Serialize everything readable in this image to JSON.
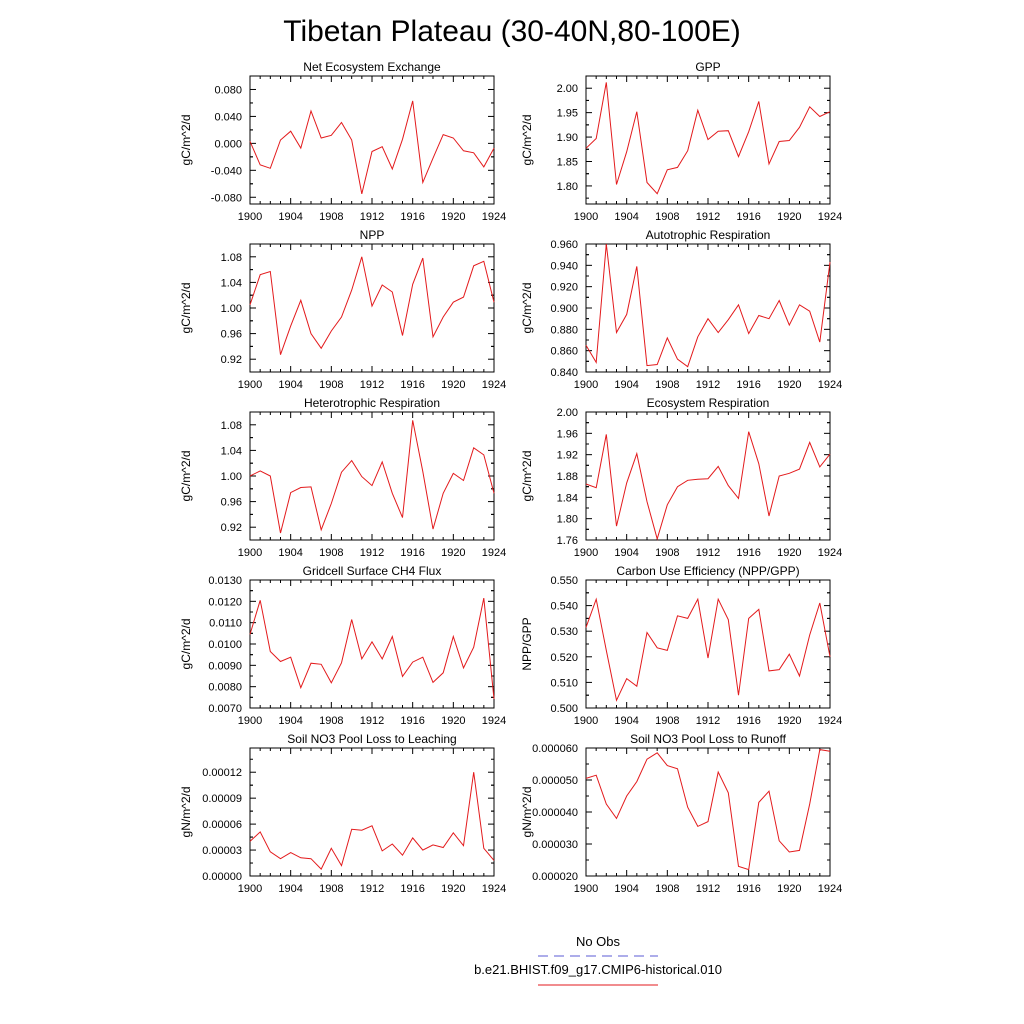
{
  "figure": {
    "title": "Tibetan Plateau (30-40N,80-100E)",
    "legend": {
      "obs_label": "No Obs",
      "obs_color": "#5b5bd6",
      "model_label": "b.e21.BHIST.f09_g17.CMIP6-historical.010",
      "model_color": "#e31a1c"
    }
  },
  "chart_data": [
    {
      "type": "line",
      "title": "Net Ecosystem Exchange",
      "xlabel": "",
      "ylabel": "gC/m^2/d",
      "x_ticks": [
        "1900",
        "1904",
        "1908",
        "1912",
        "1916",
        "1920",
        "1924"
      ],
      "y_ticks": [
        "-0.080",
        "-0.040",
        "0.000",
        "0.040",
        "0.080"
      ],
      "xlim": [
        1900,
        1924
      ],
      "ylim": [
        -0.09,
        0.1
      ],
      "grid": false,
      "series": [
        {
          "color": "#e31a1c",
          "x": [
            1900,
            1901,
            1902,
            1903,
            1904,
            1905,
            1906,
            1907,
            1908,
            1909,
            1910,
            1911,
            1912,
            1913,
            1914,
            1915,
            1916,
            1917,
            1918,
            1919,
            1920,
            1921,
            1922,
            1923,
            1924
          ],
          "values": [
            0.003,
            -0.032,
            -0.037,
            0.005,
            0.018,
            -0.007,
            0.048,
            0.008,
            0.012,
            0.031,
            0.005,
            -0.075,
            -0.012,
            -0.005,
            -0.038,
            0.006,
            0.063,
            -0.058,
            -0.022,
            0.013,
            0.008,
            -0.011,
            -0.014,
            -0.035,
            -0.007
          ]
        }
      ]
    },
    {
      "type": "line",
      "title": "GPP",
      "xlabel": "",
      "ylabel": "gC/m^2/d",
      "x_ticks": [
        "1900",
        "1904",
        "1908",
        "1912",
        "1916",
        "1920",
        "1924"
      ],
      "y_ticks": [
        "1.80",
        "1.85",
        "1.90",
        "1.95",
        "2.00"
      ],
      "xlim": [
        1900,
        1924
      ],
      "ylim": [
        1.763,
        2.025
      ],
      "grid": false,
      "series": [
        {
          "color": "#e31a1c",
          "x": [
            1900,
            1901,
            1902,
            1903,
            1904,
            1905,
            1906,
            1907,
            1908,
            1909,
            1910,
            1911,
            1912,
            1913,
            1914,
            1915,
            1916,
            1917,
            1918,
            1919,
            1920,
            1921,
            1922,
            1923,
            1924
          ],
          "values": [
            1.877,
            1.897,
            2.012,
            1.803,
            1.87,
            1.952,
            1.807,
            1.784,
            1.833,
            1.838,
            1.872,
            1.955,
            1.895,
            1.912,
            1.913,
            1.86,
            1.911,
            1.973,
            1.845,
            1.891,
            1.893,
            1.92,
            1.962,
            1.942,
            1.952
          ]
        }
      ]
    },
    {
      "type": "line",
      "title": "NPP",
      "xlabel": "",
      "ylabel": "gC/m^2/d",
      "x_ticks": [
        "1900",
        "1904",
        "1908",
        "1912",
        "1916",
        "1920",
        "1924"
      ],
      "y_ticks": [
        "0.92",
        "0.96",
        "1.00",
        "1.04",
        "1.08"
      ],
      "xlim": [
        1900,
        1924
      ],
      "ylim": [
        0.9,
        1.1
      ],
      "grid": false,
      "series": [
        {
          "color": "#e31a1c",
          "x": [
            1900,
            1901,
            1902,
            1903,
            1904,
            1905,
            1906,
            1907,
            1908,
            1909,
            1910,
            1911,
            1912,
            1913,
            1914,
            1915,
            1916,
            1917,
            1918,
            1919,
            1920,
            1921,
            1922,
            1923,
            1924
          ],
          "values": [
            1.005,
            1.052,
            1.057,
            0.927,
            0.972,
            1.012,
            0.96,
            0.937,
            0.964,
            0.986,
            1.028,
            1.08,
            1.003,
            1.036,
            1.025,
            0.957,
            1.037,
            1.078,
            0.955,
            0.986,
            1.009,
            1.017,
            1.066,
            1.073,
            1.009
          ]
        }
      ]
    },
    {
      "type": "line",
      "title": "Autotrophic Respiration",
      "xlabel": "",
      "ylabel": "gC/m^2/d",
      "x_ticks": [
        "1900",
        "1904",
        "1908",
        "1912",
        "1916",
        "1920",
        "1924"
      ],
      "y_ticks": [
        "0.840",
        "0.860",
        "0.880",
        "0.900",
        "0.920",
        "0.940",
        "0.960"
      ],
      "xlim": [
        1900,
        1924
      ],
      "ylim": [
        0.84,
        0.96
      ],
      "grid": false,
      "series": [
        {
          "color": "#e31a1c",
          "x": [
            1900,
            1901,
            1902,
            1903,
            1904,
            1905,
            1906,
            1907,
            1908,
            1909,
            1910,
            1911,
            1912,
            1913,
            1914,
            1915,
            1916,
            1917,
            1918,
            1919,
            1920,
            1921,
            1922,
            1923,
            1924
          ],
          "values": [
            0.865,
            0.849,
            0.96,
            0.877,
            0.894,
            0.939,
            0.846,
            0.847,
            0.872,
            0.852,
            0.845,
            0.873,
            0.89,
            0.877,
            0.889,
            0.903,
            0.876,
            0.893,
            0.89,
            0.907,
            0.884,
            0.903,
            0.897,
            0.868,
            0.943
          ]
        }
      ]
    },
    {
      "type": "line",
      "title": "Heterotrophic Respiration",
      "xlabel": "",
      "ylabel": "gC/m^2/d",
      "x_ticks": [
        "1900",
        "1904",
        "1908",
        "1912",
        "1916",
        "1920",
        "1924"
      ],
      "y_ticks": [
        "0.92",
        "0.96",
        "1.00",
        "1.04",
        "1.08"
      ],
      "xlim": [
        1900,
        1924
      ],
      "ylim": [
        0.9,
        1.1
      ],
      "grid": false,
      "series": [
        {
          "color": "#e31a1c",
          "x": [
            1900,
            1901,
            1902,
            1903,
            1904,
            1905,
            1906,
            1907,
            1908,
            1909,
            1910,
            1911,
            1912,
            1913,
            1914,
            1915,
            1916,
            1917,
            1918,
            1919,
            1920,
            1921,
            1922,
            1923,
            1924
          ],
          "values": [
            1.0,
            1.008,
            1.0,
            0.911,
            0.974,
            0.982,
            0.983,
            0.916,
            0.957,
            1.006,
            1.024,
            0.999,
            0.985,
            1.022,
            0.973,
            0.935,
            1.087,
            1.007,
            0.917,
            0.973,
            1.004,
            0.993,
            1.044,
            1.033,
            0.973
          ]
        }
      ]
    },
    {
      "type": "line",
      "title": "Ecosystem Respiration",
      "xlabel": "",
      "ylabel": "gC/m^2/d",
      "x_ticks": [
        "1900",
        "1904",
        "1908",
        "1912",
        "1916",
        "1920",
        "1924"
      ],
      "y_ticks": [
        "1.76",
        "1.80",
        "1.84",
        "1.88",
        "1.92",
        "1.96",
        "2.00"
      ],
      "xlim": [
        1900,
        1924
      ],
      "ylim": [
        1.76,
        2.0
      ],
      "grid": false,
      "series": [
        {
          "color": "#e31a1c",
          "x": [
            1900,
            1901,
            1902,
            1903,
            1904,
            1905,
            1906,
            1907,
            1908,
            1909,
            1910,
            1911,
            1912,
            1913,
            1914,
            1915,
            1916,
            1917,
            1918,
            1919,
            1920,
            1921,
            1922,
            1923,
            1924
          ],
          "values": [
            1.865,
            1.858,
            1.958,
            1.786,
            1.867,
            1.922,
            1.832,
            1.762,
            1.826,
            1.86,
            1.872,
            1.874,
            1.875,
            1.898,
            1.862,
            1.838,
            1.963,
            1.903,
            1.805,
            1.88,
            1.885,
            1.893,
            1.943,
            1.897,
            1.921
          ]
        }
      ]
    },
    {
      "type": "line",
      "title": "Gridcell Surface CH4 Flux",
      "xlabel": "",
      "ylabel": "gC/m^2/d",
      "x_ticks": [
        "1900",
        "1904",
        "1908",
        "1912",
        "1916",
        "1920",
        "1924"
      ],
      "y_ticks": [
        "0.0070",
        "0.0080",
        "0.0090",
        "0.0100",
        "0.0110",
        "0.0120",
        "0.0130"
      ],
      "xlim": [
        1900,
        1924
      ],
      "ylim": [
        0.007,
        0.013
      ],
      "grid": false,
      "series": [
        {
          "color": "#e31a1c",
          "x": [
            1900,
            1901,
            1902,
            1903,
            1904,
            1905,
            1906,
            1907,
            1908,
            1909,
            1910,
            1911,
            1912,
            1913,
            1914,
            1915,
            1916,
            1917,
            1918,
            1919,
            1920,
            1921,
            1922,
            1923,
            1924
          ],
          "values": [
            0.01045,
            0.01205,
            0.00965,
            0.00918,
            0.00938,
            0.00795,
            0.0091,
            0.00905,
            0.00818,
            0.00912,
            0.01115,
            0.0093,
            0.0101,
            0.0093,
            0.01035,
            0.00848,
            0.00915,
            0.00938,
            0.0082,
            0.00865,
            0.01035,
            0.00888,
            0.00985,
            0.01215,
            0.00742
          ]
        }
      ]
    },
    {
      "type": "line",
      "title": "Carbon Use Efficiency (NPP/GPP)",
      "xlabel": "",
      "ylabel": "NPP/GPP",
      "x_ticks": [
        "1900",
        "1904",
        "1908",
        "1912",
        "1916",
        "1920",
        "1924"
      ],
      "y_ticks": [
        "0.500",
        "0.510",
        "0.520",
        "0.530",
        "0.540",
        "0.550"
      ],
      "xlim": [
        1900,
        1924
      ],
      "ylim": [
        0.5,
        0.55
      ],
      "grid": false,
      "series": [
        {
          "color": "#e31a1c",
          "x": [
            1900,
            1901,
            1902,
            1903,
            1904,
            1905,
            1906,
            1907,
            1908,
            1909,
            1910,
            1911,
            1912,
            1913,
            1914,
            1915,
            1916,
            1917,
            1918,
            1919,
            1920,
            1921,
            1922,
            1923,
            1924
          ],
          "values": [
            0.5315,
            0.5425,
            0.5225,
            0.503,
            0.5115,
            0.5085,
            0.5295,
            0.5235,
            0.5225,
            0.536,
            0.535,
            0.5425,
            0.5195,
            0.5425,
            0.5345,
            0.505,
            0.535,
            0.5385,
            0.5145,
            0.515,
            0.521,
            0.5125,
            0.5285,
            0.541,
            0.52
          ]
        }
      ]
    },
    {
      "type": "line",
      "title": "Soil NO3 Pool Loss to Leaching",
      "xlabel": "",
      "ylabel": "gN/m^2/d",
      "x_ticks": [
        "1900",
        "1904",
        "1908",
        "1912",
        "1916",
        "1920",
        "1924"
      ],
      "y_ticks": [
        "0.00000",
        "0.00003",
        "0.00006",
        "0.00009",
        "0.00012"
      ],
      "xlim": [
        1900,
        1924
      ],
      "ylim": [
        0.0,
        0.000148
      ],
      "grid": false,
      "series": [
        {
          "color": "#e31a1c",
          "x": [
            1900,
            1901,
            1902,
            1903,
            1904,
            1905,
            1906,
            1907,
            1908,
            1909,
            1910,
            1911,
            1912,
            1913,
            1914,
            1915,
            1916,
            1917,
            1918,
            1919,
            1920,
            1921,
            1922,
            1923,
            1924
          ],
          "values": [
            4e-05,
            5.1e-05,
            2.8e-05,
            2e-05,
            2.7e-05,
            2.1e-05,
            2e-05,
            8e-06,
            3.2e-05,
            1.2e-05,
            5.4e-05,
            5.3e-05,
            5.8e-05,
            2.9e-05,
            3.7e-05,
            2.4e-05,
            4.4e-05,
            3e-05,
            3.6e-05,
            3.3e-05,
            5e-05,
            3.5e-05,
            0.00012,
            3.2e-05,
            1.8e-05
          ]
        }
      ]
    },
    {
      "type": "line",
      "title": "Soil NO3 Pool Loss to Runoff",
      "xlabel": "",
      "ylabel": "gN/m^2/d",
      "x_ticks": [
        "1900",
        "1904",
        "1908",
        "1912",
        "1916",
        "1920",
        "1924"
      ],
      "y_ticks": [
        "0.000020",
        "0.000030",
        "0.000040",
        "0.000050",
        "0.000060"
      ],
      "xlim": [
        1900,
        1924
      ],
      "ylim": [
        2e-05,
        6e-05
      ],
      "grid": false,
      "series": [
        {
          "color": "#e31a1c",
          "x": [
            1900,
            1901,
            1902,
            1903,
            1904,
            1905,
            1906,
            1907,
            1908,
            1909,
            1910,
            1911,
            1912,
            1913,
            1914,
            1915,
            1916,
            1917,
            1918,
            1919,
            1920,
            1921,
            1922,
            1923,
            1924
          ],
          "values": [
            5.05e-05,
            5.15e-05,
            4.25e-05,
            3.8e-05,
            4.5e-05,
            4.95e-05,
            5.65e-05,
            5.85e-05,
            5.45e-05,
            5.35e-05,
            4.15e-05,
            3.55e-05,
            3.7e-05,
            5.25e-05,
            4.6e-05,
            2.3e-05,
            2.2e-05,
            4.3e-05,
            4.65e-05,
            3.1e-05,
            2.75e-05,
            2.8e-05,
            4.25e-05,
            5.95e-05,
            5.9e-05
          ]
        }
      ]
    }
  ]
}
